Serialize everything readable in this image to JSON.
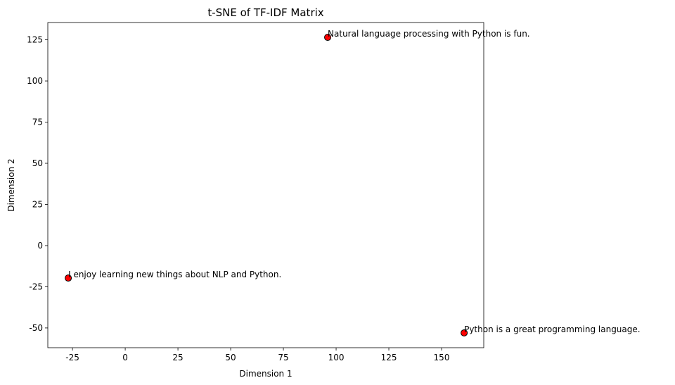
{
  "chart_data": {
    "type": "scatter",
    "title": "t-SNE of TF-IDF Matrix",
    "x_label": "Dimension 1",
    "y_label": "Dimension 2",
    "x": [
      -27,
      96,
      160.7
    ],
    "y": [
      -19.7,
      126.5,
      -53
    ],
    "annotations": [
      "I enjoy learning new things about NLP and Python.",
      "Natural language processing with Python is fun.",
      "Python is a great programming language."
    ],
    "color": "#ff0000",
    "edgecolor": "#000000",
    "xlim": [
      -36.7,
      170
    ],
    "xticks": [
      -25,
      0,
      25,
      50,
      75,
      100,
      125,
      150
    ],
    "ylim": [
      -62,
      135.5
    ],
    "yticks": [
      -50,
      -25,
      0,
      25,
      50,
      75,
      100,
      125
    ],
    "grid": false
  }
}
